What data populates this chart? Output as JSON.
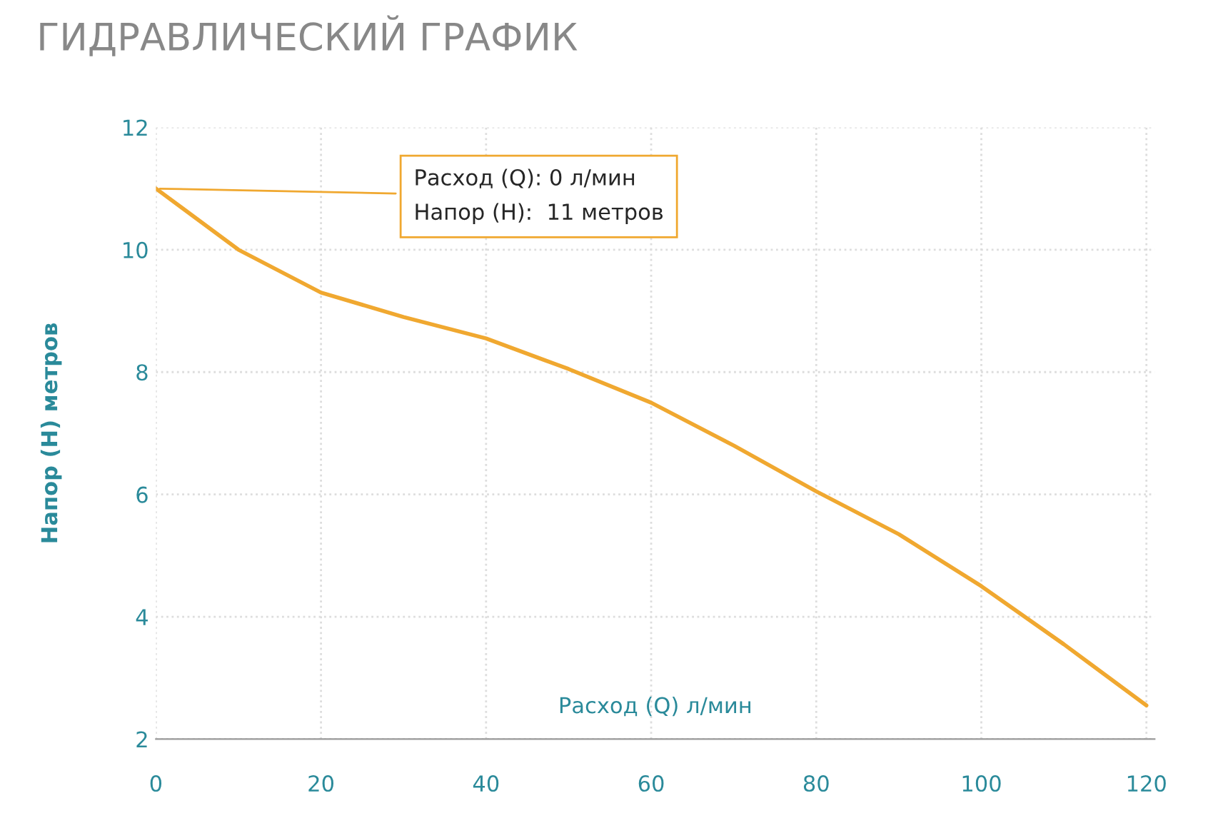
{
  "chart_data": {
    "type": "line",
    "title": "ГИДРАВЛИЧЕСКИЙ ГРАФИК",
    "xlabel": "Расход (Q) л/мин",
    "ylabel": "Напор (H) метров",
    "x": [
      0,
      10,
      20,
      30,
      40,
      50,
      60,
      70,
      80,
      90,
      100,
      110,
      120
    ],
    "series": [
      {
        "color": "#f0a830",
        "values": [
          11.0,
          10.0,
          9.3,
          8.9,
          8.55,
          8.05,
          7.5,
          6.8,
          6.05,
          5.35,
          4.5,
          3.55,
          2.55
        ]
      }
    ],
    "xlim": [
      0,
      121
    ],
    "ylim": [
      2,
      12
    ],
    "xticks": [
      0,
      20,
      40,
      60,
      80,
      100,
      120
    ],
    "yticks": [
      2,
      4,
      6,
      8,
      10,
      12
    ],
    "grid": true,
    "marker": "none",
    "line_style": "solid",
    "annotations": [
      {
        "text": "Расход (Q): 0 л/мин\nНапор (H):  11 метров",
        "x": 0,
        "y": 11
      }
    ]
  }
}
